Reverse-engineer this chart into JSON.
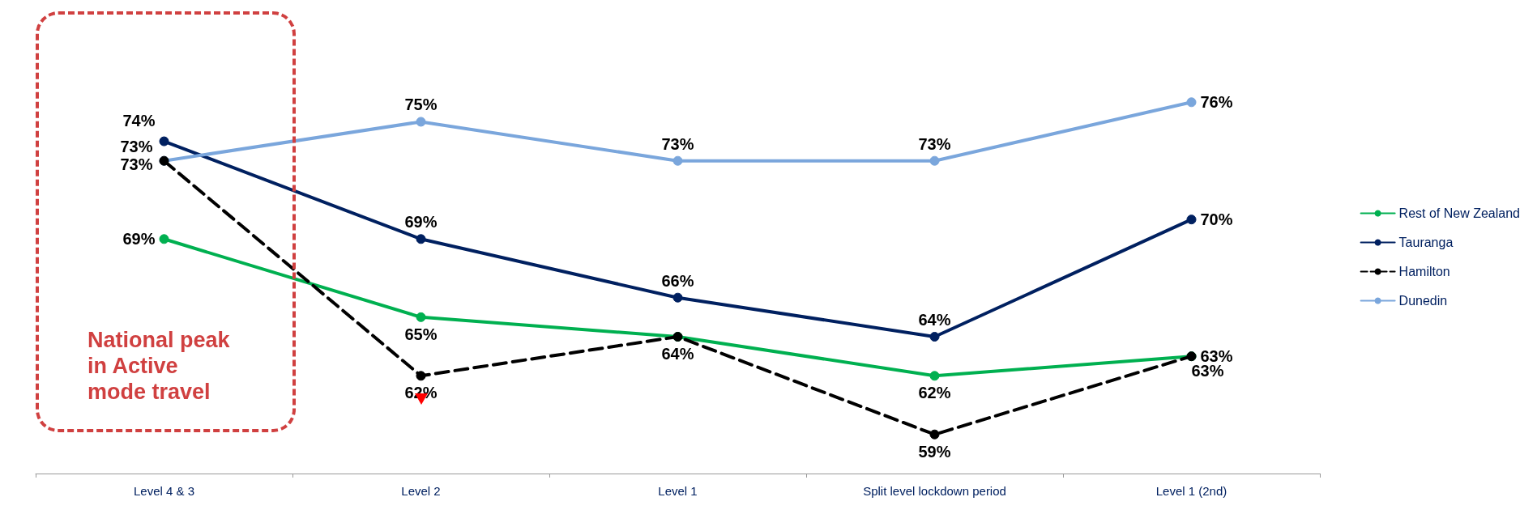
{
  "chart_data": {
    "type": "line",
    "categories": [
      "Level 4 & 3",
      "Level 2",
      "Level 1",
      "Split level lockdown period",
      "Level 1 (2nd)"
    ],
    "series": [
      {
        "name": "Rest of New Zealand",
        "color": "#00b050",
        "values": [
          69,
          65,
          64,
          62,
          63
        ],
        "value_labels": [
          "69%",
          "65%",
          "64%",
          "62%",
          "63%"
        ],
        "line_style": "solid"
      },
      {
        "name": "Tauranga",
        "color": "#002060",
        "values": [
          74,
          69,
          66,
          64,
          70
        ],
        "value_labels": [
          "74%",
          "69%",
          "66%",
          "64%",
          "70%"
        ],
        "line_style": "solid"
      },
      {
        "name": "Hamilton",
        "color": "#000000",
        "values": [
          73,
          62,
          64,
          59,
          63
        ],
        "value_labels": [
          "73%",
          "62%",
          null,
          "59%",
          "63%"
        ],
        "line_style": "dashed"
      },
      {
        "name": "Dunedin",
        "color": "#7aa6dc",
        "values": [
          73,
          75,
          73,
          73,
          76
        ],
        "value_labels": [
          "73%",
          "75%",
          "73%",
          "73%",
          "76%"
        ],
        "line_style": "solid"
      }
    ],
    "tick_labels": "x",
    "grid": false,
    "legend": "right",
    "marker": "circle",
    "annotations": [
      "National peak in Active mode travel"
    ]
  }
}
